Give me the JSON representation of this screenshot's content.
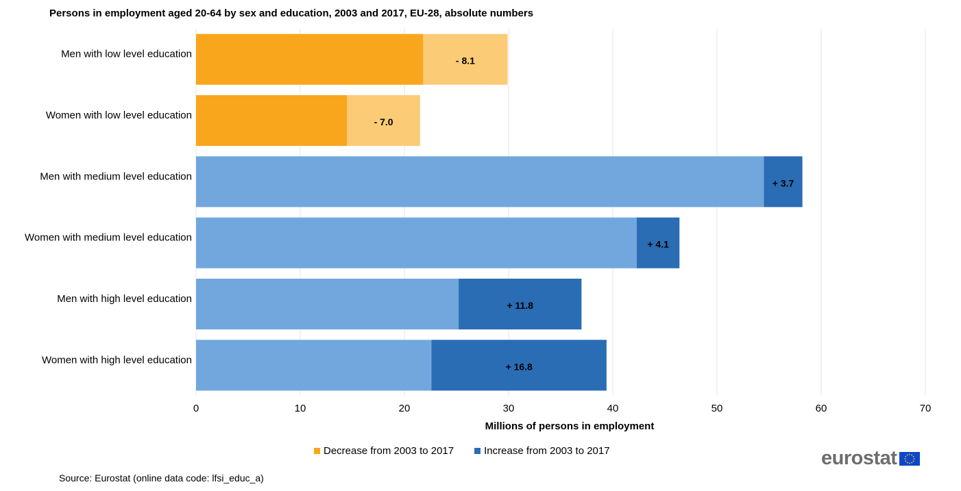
{
  "chart_data": {
    "type": "bar",
    "orientation": "horizontal",
    "stacked": true,
    "title": "Persons in employment aged 20-64 by sex and education, 2003 and 2017, EU-28, absolute numbers",
    "xlabel": "Millions  of persons in employment",
    "ylabel": "",
    "xlim": [
      0,
      70
    ],
    "xticks": [
      0,
      10,
      20,
      30,
      40,
      50,
      60,
      70
    ],
    "grid": "vertical",
    "legend_position": "bottom",
    "categories": [
      "Men with low level education",
      "Women with low level education",
      "Men with medium level education",
      "Women with medium level education",
      "Men with high level education",
      "Women with high level education"
    ],
    "base_values": [
      21.8,
      14.5,
      54.5,
      42.3,
      25.2,
      22.6
    ],
    "change_values": [
      -8.1,
      -7.0,
      3.7,
      4.1,
      11.8,
      16.8
    ],
    "change_labels": [
      "- 8.1",
      "- 7.0",
      "+ 3.7",
      "+ 4.1",
      "+ 11.8",
      "+ 16.8"
    ],
    "series": [
      {
        "name": "Decrease from 2003 to 2017",
        "color": "#fbcb76"
      },
      {
        "name": "Increase from 2003 to 2017",
        "color": "#2a6db5"
      }
    ],
    "colors": {
      "low_base": "#f9a61c",
      "low_change": "#fbcb76",
      "other_base": "#72a7de",
      "other_change": "#2a6db5",
      "legend_decrease": "#f9a61c",
      "legend_increase": "#2a6db5",
      "grid": "#e6e6e6"
    }
  },
  "source": "Source:  Eurostat (online data code:  lfsi_educ_a)",
  "logo": {
    "text": "eurostat",
    "icon": "eu-flag-icon"
  }
}
